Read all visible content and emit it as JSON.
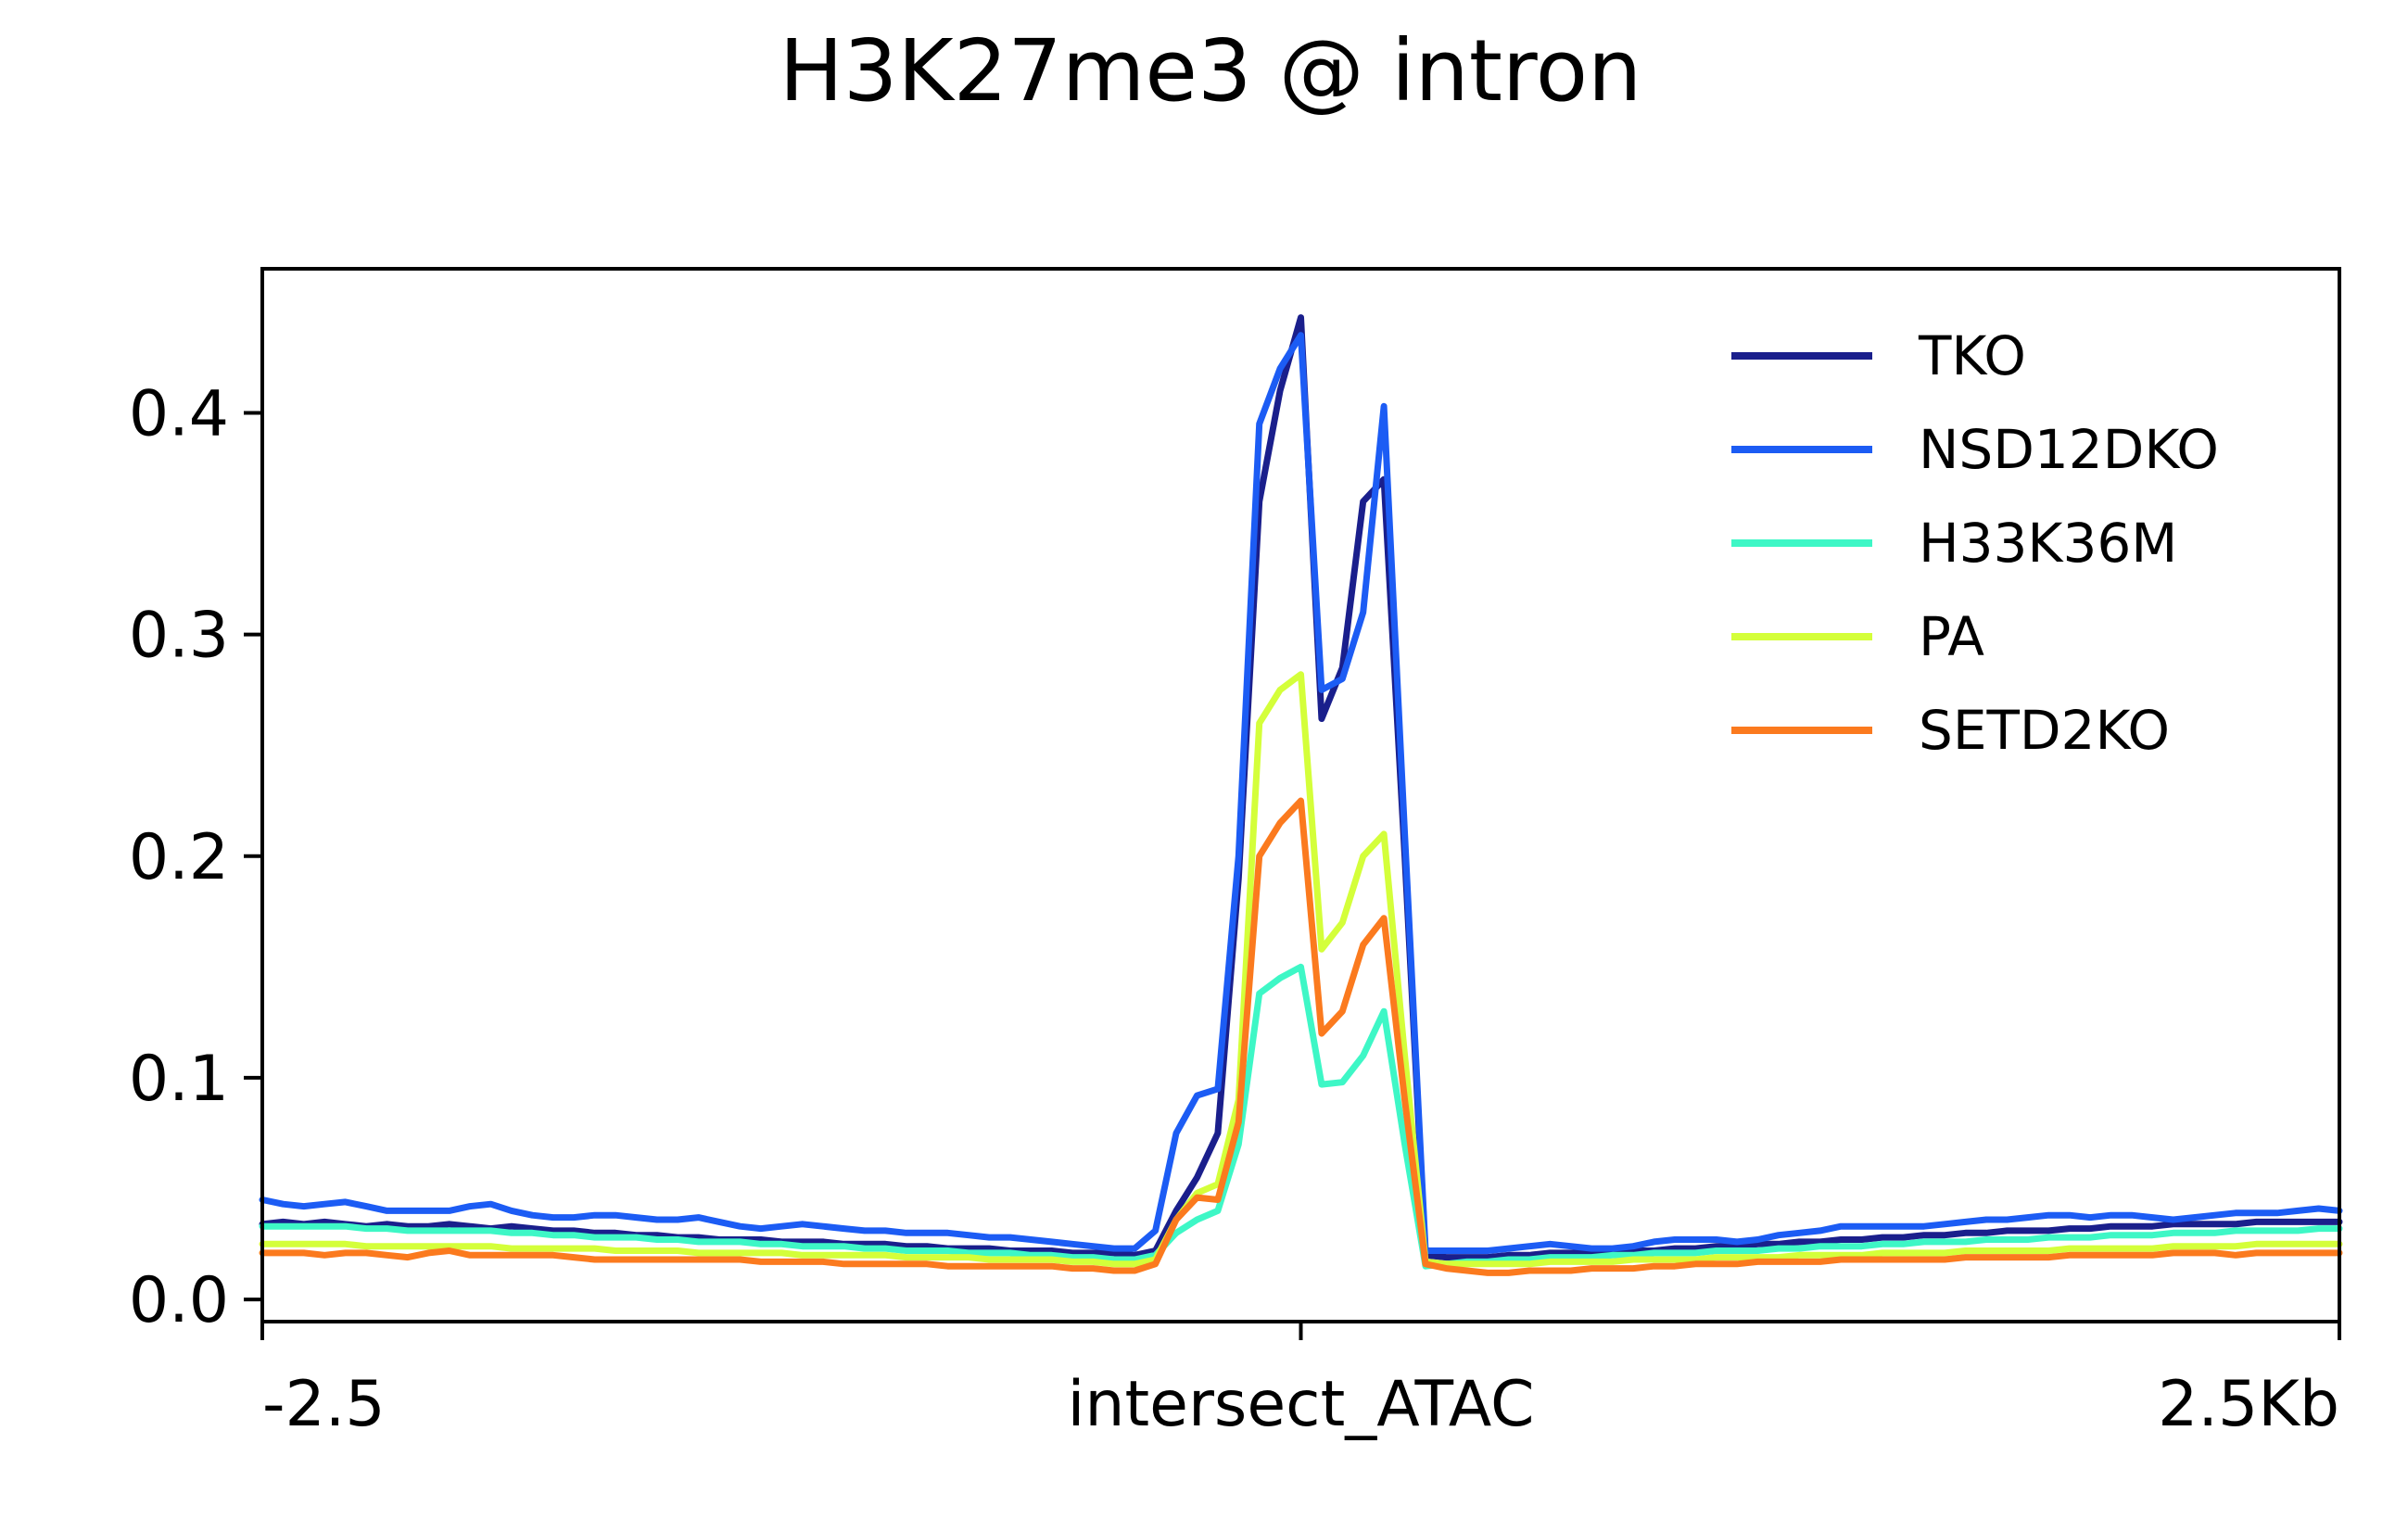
{
  "chart_data": {
    "type": "line",
    "title": "H3K27me3 @ intron",
    "xlabel": "",
    "ylabel": "",
    "x_tick_labels": [
      "-2.5",
      "intersect_ATAC",
      "2.5Kb"
    ],
    "x_tick_values": [
      -2.5,
      0,
      2.5
    ],
    "xlim": [
      -2.5,
      2.5
    ],
    "ylim": [
      -0.01,
      0.465
    ],
    "y_ticks": [
      0.0,
      0.1,
      0.2,
      0.3,
      0.4
    ],
    "y_tick_labels": [
      "0.0",
      "0.1",
      "0.2",
      "0.3",
      "0.4"
    ],
    "grid": false,
    "legend_position": "top-right",
    "x": [
      -2.5,
      -2.45,
      -2.4,
      -2.35,
      -2.3,
      -2.25,
      -2.2,
      -2.15,
      -2.1,
      -2.05,
      -2.0,
      -1.95,
      -1.9,
      -1.85,
      -1.8,
      -1.75,
      -1.7,
      -1.65,
      -1.6,
      -1.55,
      -1.5,
      -1.45,
      -1.4,
      -1.35,
      -1.3,
      -1.25,
      -1.2,
      -1.15,
      -1.1,
      -1.05,
      -1.0,
      -0.95,
      -0.9,
      -0.85,
      -0.8,
      -0.75,
      -0.7,
      -0.65,
      -0.6,
      -0.55,
      -0.5,
      -0.45,
      -0.4,
      -0.35,
      -0.3,
      -0.25,
      -0.2,
      -0.15,
      -0.1,
      -0.05,
      0.0,
      0.05,
      0.1,
      0.15,
      0.2,
      0.25,
      0.3,
      0.35,
      0.4,
      0.45,
      0.5,
      0.55,
      0.6,
      0.65,
      0.7,
      0.75,
      0.8,
      0.85,
      0.9,
      0.95,
      1.0,
      1.05,
      1.1,
      1.15,
      1.2,
      1.25,
      1.3,
      1.35,
      1.4,
      1.45,
      1.5,
      1.55,
      1.6,
      1.65,
      1.7,
      1.75,
      1.8,
      1.85,
      1.9,
      1.95,
      2.0,
      2.05,
      2.1,
      2.15,
      2.2,
      2.25,
      2.3,
      2.35,
      2.4,
      2.45,
      2.5
    ],
    "series": [
      {
        "name": "TKO",
        "color": "#1a1f8c",
        "values": [
          0.034,
          0.035,
          0.034,
          0.035,
          0.034,
          0.033,
          0.034,
          0.033,
          0.033,
          0.034,
          0.033,
          0.032,
          0.033,
          0.032,
          0.031,
          0.031,
          0.03,
          0.03,
          0.029,
          0.029,
          0.028,
          0.028,
          0.027,
          0.027,
          0.027,
          0.026,
          0.026,
          0.026,
          0.025,
          0.025,
          0.025,
          0.024,
          0.024,
          0.023,
          0.023,
          0.023,
          0.022,
          0.022,
          0.022,
          0.021,
          0.021,
          0.021,
          0.02,
          0.022,
          0.04,
          0.055,
          0.075,
          0.19,
          0.36,
          0.41,
          0.443,
          0.262,
          0.285,
          0.36,
          0.37,
          0.2,
          0.02,
          0.019,
          0.019,
          0.019,
          0.02,
          0.02,
          0.021,
          0.021,
          0.021,
          0.022,
          0.022,
          0.022,
          0.023,
          0.023,
          0.024,
          0.024,
          0.025,
          0.025,
          0.026,
          0.026,
          0.027,
          0.027,
          0.028,
          0.028,
          0.029,
          0.029,
          0.03,
          0.03,
          0.031,
          0.031,
          0.031,
          0.032,
          0.032,
          0.033,
          0.033,
          0.033,
          0.034,
          0.034,
          0.034,
          0.034,
          0.035,
          0.035,
          0.035,
          0.035,
          0.035
        ]
      },
      {
        "name": "NSD12DKO",
        "color": "#1c5cf4",
        "values": [
          0.045,
          0.043,
          0.042,
          0.043,
          0.044,
          0.042,
          0.04,
          0.04,
          0.04,
          0.04,
          0.042,
          0.043,
          0.04,
          0.038,
          0.037,
          0.037,
          0.038,
          0.038,
          0.037,
          0.036,
          0.036,
          0.037,
          0.035,
          0.033,
          0.032,
          0.033,
          0.034,
          0.033,
          0.032,
          0.031,
          0.031,
          0.03,
          0.03,
          0.03,
          0.029,
          0.028,
          0.028,
          0.027,
          0.026,
          0.025,
          0.024,
          0.023,
          0.023,
          0.031,
          0.075,
          0.092,
          0.095,
          0.2,
          0.395,
          0.42,
          0.435,
          0.275,
          0.28,
          0.31,
          0.403,
          0.21,
          0.022,
          0.022,
          0.022,
          0.022,
          0.023,
          0.024,
          0.025,
          0.024,
          0.023,
          0.023,
          0.024,
          0.026,
          0.027,
          0.027,
          0.027,
          0.026,
          0.027,
          0.029,
          0.03,
          0.031,
          0.033,
          0.033,
          0.033,
          0.033,
          0.033,
          0.034,
          0.035,
          0.036,
          0.036,
          0.037,
          0.038,
          0.038,
          0.037,
          0.038,
          0.038,
          0.037,
          0.036,
          0.037,
          0.038,
          0.039,
          0.039,
          0.039,
          0.04,
          0.041,
          0.04
        ]
      },
      {
        "name": "H33K36M",
        "color": "#3ef7c6",
        "values": [
          0.033,
          0.033,
          0.033,
          0.033,
          0.033,
          0.032,
          0.032,
          0.031,
          0.031,
          0.031,
          0.031,
          0.031,
          0.03,
          0.03,
          0.029,
          0.029,
          0.028,
          0.028,
          0.028,
          0.027,
          0.027,
          0.026,
          0.026,
          0.026,
          0.025,
          0.025,
          0.024,
          0.024,
          0.024,
          0.023,
          0.023,
          0.022,
          0.022,
          0.022,
          0.021,
          0.021,
          0.021,
          0.02,
          0.02,
          0.019,
          0.019,
          0.018,
          0.018,
          0.02,
          0.03,
          0.036,
          0.04,
          0.07,
          0.138,
          0.145,
          0.15,
          0.097,
          0.098,
          0.11,
          0.13,
          0.07,
          0.015,
          0.016,
          0.017,
          0.017,
          0.018,
          0.018,
          0.019,
          0.019,
          0.019,
          0.02,
          0.02,
          0.021,
          0.021,
          0.021,
          0.022,
          0.022,
          0.022,
          0.023,
          0.023,
          0.024,
          0.024,
          0.024,
          0.025,
          0.025,
          0.026,
          0.026,
          0.026,
          0.027,
          0.027,
          0.027,
          0.028,
          0.028,
          0.028,
          0.029,
          0.029,
          0.029,
          0.03,
          0.03,
          0.03,
          0.031,
          0.031,
          0.031,
          0.031,
          0.032,
          0.032
        ]
      },
      {
        "name": "PA",
        "color": "#d4ff3a",
        "values": [
          0.025,
          0.025,
          0.025,
          0.025,
          0.025,
          0.024,
          0.024,
          0.024,
          0.024,
          0.024,
          0.024,
          0.024,
          0.023,
          0.023,
          0.023,
          0.023,
          0.023,
          0.022,
          0.022,
          0.022,
          0.022,
          0.021,
          0.021,
          0.021,
          0.021,
          0.021,
          0.02,
          0.02,
          0.02,
          0.02,
          0.02,
          0.019,
          0.019,
          0.019,
          0.019,
          0.018,
          0.018,
          0.018,
          0.018,
          0.017,
          0.017,
          0.016,
          0.016,
          0.018,
          0.036,
          0.048,
          0.052,
          0.09,
          0.26,
          0.275,
          0.282,
          0.158,
          0.17,
          0.2,
          0.21,
          0.11,
          0.017,
          0.016,
          0.016,
          0.016,
          0.016,
          0.016,
          0.017,
          0.017,
          0.017,
          0.017,
          0.018,
          0.018,
          0.018,
          0.018,
          0.019,
          0.019,
          0.019,
          0.019,
          0.02,
          0.02,
          0.02,
          0.02,
          0.021,
          0.021,
          0.021,
          0.021,
          0.022,
          0.022,
          0.022,
          0.022,
          0.022,
          0.023,
          0.023,
          0.023,
          0.023,
          0.023,
          0.024,
          0.024,
          0.024,
          0.024,
          0.025,
          0.025,
          0.025,
          0.025,
          0.025
        ]
      },
      {
        "name": "SETD2KO",
        "color": "#fb7a1e",
        "values": [
          0.021,
          0.021,
          0.021,
          0.02,
          0.021,
          0.021,
          0.02,
          0.019,
          0.021,
          0.022,
          0.02,
          0.02,
          0.02,
          0.02,
          0.02,
          0.019,
          0.018,
          0.018,
          0.018,
          0.018,
          0.018,
          0.018,
          0.018,
          0.018,
          0.017,
          0.017,
          0.017,
          0.017,
          0.016,
          0.016,
          0.016,
          0.016,
          0.016,
          0.015,
          0.015,
          0.015,
          0.015,
          0.015,
          0.015,
          0.014,
          0.014,
          0.013,
          0.013,
          0.016,
          0.036,
          0.046,
          0.045,
          0.08,
          0.2,
          0.215,
          0.225,
          0.12,
          0.13,
          0.16,
          0.172,
          0.09,
          0.016,
          0.014,
          0.013,
          0.012,
          0.012,
          0.013,
          0.013,
          0.013,
          0.014,
          0.014,
          0.014,
          0.015,
          0.015,
          0.016,
          0.016,
          0.016,
          0.017,
          0.017,
          0.017,
          0.017,
          0.018,
          0.018,
          0.018,
          0.018,
          0.018,
          0.018,
          0.019,
          0.019,
          0.019,
          0.019,
          0.019,
          0.02,
          0.02,
          0.02,
          0.02,
          0.02,
          0.021,
          0.021,
          0.021,
          0.02,
          0.021,
          0.021,
          0.021,
          0.021,
          0.021
        ]
      }
    ]
  }
}
